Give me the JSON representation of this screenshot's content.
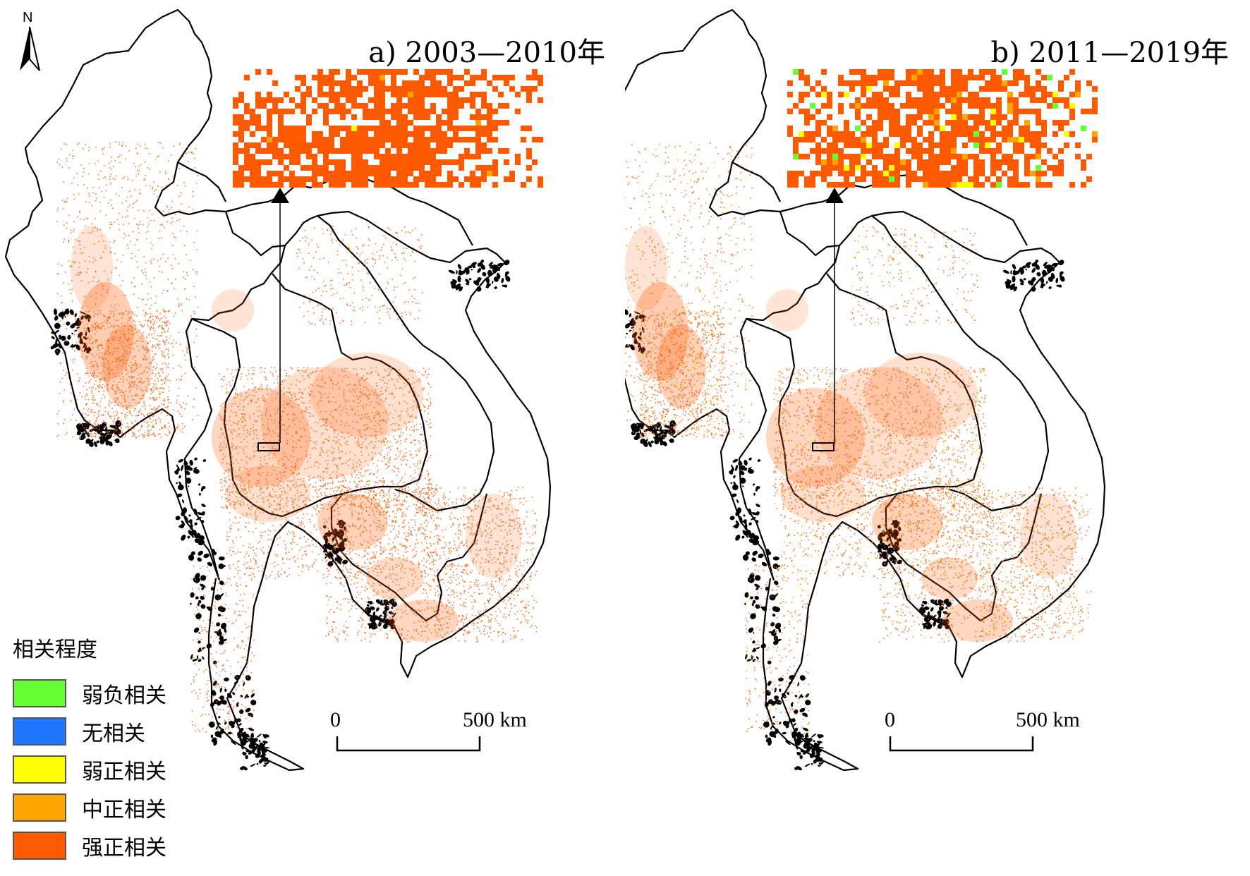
{
  "panels": [
    {
      "title": "a) 2003—2010年"
    },
    {
      "title": "b) 2011—2019年"
    }
  ],
  "scale_bar": {
    "zero": "0",
    "end": "500 km"
  },
  "north_arrow": {
    "label": "N",
    "icon": "north-arrow-icon"
  },
  "legend": {
    "title": "相关程度",
    "items": [
      {
        "label": "弱负相关",
        "color": "#66ff33"
      },
      {
        "label": "无相关",
        "color": "#1f77ff"
      },
      {
        "label": "弱正相关",
        "color": "#ffff00"
      },
      {
        "label": "中正相关",
        "color": "#ffa500"
      },
      {
        "label": "强正相关",
        "color": "#ff5a00"
      }
    ]
  }
}
